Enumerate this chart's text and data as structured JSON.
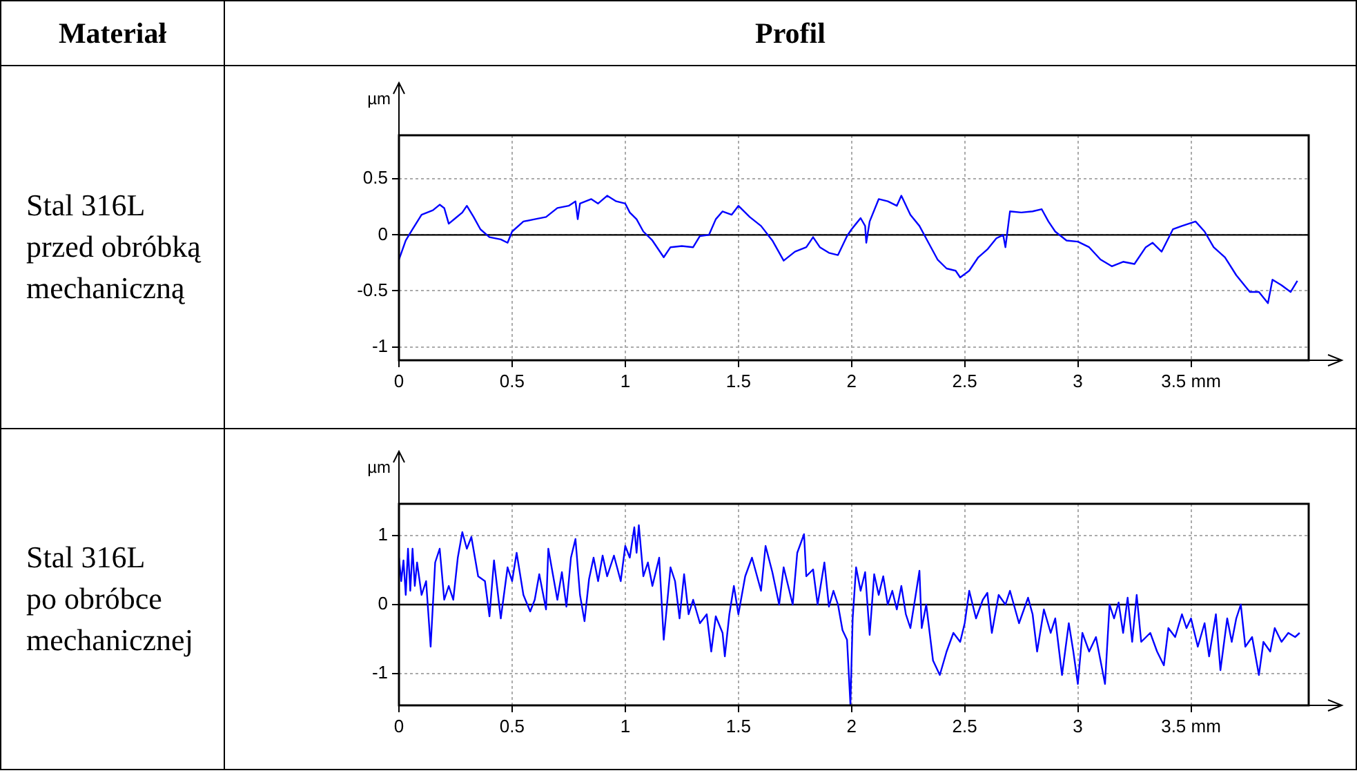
{
  "chart_data": [
    {
      "type": "other",
      "annotations": [
        "Materiał",
        "Profil"
      ]
    },
    {
      "type": "line",
      "annotations": [
        "Stal 316L",
        "przed obróbką",
        "mechaniczną"
      ],
      "ylabel": "µm",
      "xlim": [
        0,
        4.02
      ],
      "ylim": [
        -1.12,
        0.89
      ],
      "xticks": [
        0,
        0.5,
        1,
        1.5,
        2,
        2.5,
        3,
        {
          "value": 3.5,
          "label": "3.5 mm"
        }
      ],
      "yticks": [
        -1,
        -0.5,
        0,
        0.5
      ],
      "grid": true,
      "marker": "none",
      "line_style": "solid",
      "ref_lines": [
        {
          "axis": "y",
          "value": 0,
          "color": "#000000"
        }
      ],
      "series": [
        {
          "color": "#0000ff",
          "x": [
            0,
            0.03,
            0.06,
            0.1,
            0.15,
            0.18,
            0.2,
            0.22,
            0.25,
            0.28,
            0.3,
            0.33,
            0.36,
            0.4,
            0.45,
            0.48,
            0.5,
            0.55,
            0.6,
            0.65,
            0.7,
            0.75,
            0.78,
            0.79,
            0.8,
            0.85,
            0.88,
            0.92,
            0.96,
            1.0,
            1.02,
            1.05,
            1.08,
            1.12,
            1.17,
            1.2,
            1.25,
            1.3,
            1.33,
            1.37,
            1.4,
            1.43,
            1.47,
            1.5,
            1.55,
            1.6,
            1.65,
            1.7,
            1.75,
            1.8,
            1.83,
            1.86,
            1.9,
            1.94,
            1.98,
            2.0,
            2.02,
            2.04,
            2.06,
            2.065,
            2.08,
            2.12,
            2.16,
            2.2,
            2.22,
            2.26,
            2.3,
            2.34,
            2.38,
            2.42,
            2.46,
            2.48,
            2.52,
            2.56,
            2.6,
            2.64,
            2.67,
            2.68,
            2.7,
            2.75,
            2.8,
            2.84,
            2.87,
            2.9,
            2.95,
            3.0,
            3.05,
            3.1,
            3.15,
            3.2,
            3.25,
            3.3,
            3.33,
            3.37,
            3.42,
            3.46,
            3.52,
            3.56,
            3.6,
            3.65,
            3.7,
            3.76,
            3.8,
            3.84,
            3.86,
            3.9,
            3.94,
            3.97
          ],
          "values": [
            -0.22,
            -0.05,
            0.05,
            0.18,
            0.22,
            0.27,
            0.24,
            0.1,
            0.15,
            0.2,
            0.26,
            0.16,
            0.05,
            -0.02,
            -0.04,
            -0.07,
            0.03,
            0.12,
            0.14,
            0.16,
            0.24,
            0.26,
            0.3,
            0.14,
            0.28,
            0.32,
            0.28,
            0.35,
            0.3,
            0.28,
            0.2,
            0.14,
            0.03,
            -0.05,
            -0.2,
            -0.11,
            -0.1,
            -0.11,
            -0.01,
            0,
            0.14,
            0.21,
            0.18,
            0.26,
            0.16,
            0.08,
            -0.05,
            -0.23,
            -0.15,
            -0.11,
            -0.02,
            -0.11,
            -0.16,
            -0.18,
            -0.01,
            0.05,
            0.1,
            0.15,
            0.08,
            -0.07,
            0.12,
            0.32,
            0.3,
            0.26,
            0.35,
            0.18,
            0.08,
            -0.07,
            -0.22,
            -0.3,
            -0.32,
            -0.38,
            -0.32,
            -0.2,
            -0.13,
            -0.03,
            0,
            -0.11,
            0.21,
            0.2,
            0.21,
            0.23,
            0.12,
            0.03,
            -0.05,
            -0.06,
            -0.11,
            -0.22,
            -0.28,
            -0.24,
            -0.26,
            -0.11,
            -0.07,
            -0.15,
            0.05,
            0.08,
            0.12,
            0.03,
            -0.11,
            -0.2,
            -0.36,
            -0.51,
            -0.51,
            -0.61,
            -0.4,
            -0.45,
            -0.51,
            -0.41
          ]
        }
      ]
    },
    {
      "type": "line",
      "annotations": [
        "Stal 316L",
        "po obróbce",
        "mechanicznej"
      ],
      "ylabel": "µm",
      "xlim": [
        0,
        4.02
      ],
      "ylim": [
        -1.46,
        1.46
      ],
      "xticks": [
        0,
        0.5,
        1,
        1.5,
        2,
        2.5,
        3,
        {
          "value": 3.5,
          "label": "3.5 mm"
        }
      ],
      "yticks": [
        -1,
        0,
        1
      ],
      "grid": true,
      "marker": "none",
      "line_style": "solid",
      "ref_lines": [
        {
          "axis": "y",
          "value": 0,
          "color": "#000000"
        }
      ],
      "series": [
        {
          "color": "#0000ff",
          "x": [
            0,
            0.01,
            0.02,
            0.03,
            0.04,
            0.05,
            0.06,
            0.07,
            0.08,
            0.1,
            0.12,
            0.14,
            0.15,
            0.16,
            0.18,
            0.2,
            0.22,
            0.24,
            0.26,
            0.28,
            0.3,
            0.32,
            0.35,
            0.38,
            0.4,
            0.42,
            0.45,
            0.48,
            0.5,
            0.52,
            0.55,
            0.58,
            0.6,
            0.62,
            0.65,
            0.66,
            0.7,
            0.72,
            0.74,
            0.76,
            0.78,
            0.8,
            0.82,
            0.84,
            0.86,
            0.88,
            0.9,
            0.92,
            0.95,
            0.98,
            1.0,
            1.02,
            1.04,
            1.05,
            1.06,
            1.08,
            1.1,
            1.12,
            1.15,
            1.17,
            1.2,
            1.22,
            1.24,
            1.26,
            1.28,
            1.3,
            1.33,
            1.36,
            1.38,
            1.4,
            1.43,
            1.44,
            1.46,
            1.48,
            1.5,
            1.53,
            1.56,
            1.6,
            1.62,
            1.65,
            1.68,
            1.7,
            1.74,
            1.76,
            1.79,
            1.8,
            1.83,
            1.85,
            1.88,
            1.9,
            1.92,
            1.94,
            1.96,
            1.98,
            1.995,
            2.005,
            2.02,
            2.04,
            2.06,
            2.08,
            2.1,
            2.12,
            2.14,
            2.16,
            2.18,
            2.2,
            2.22,
            2.24,
            2.26,
            2.28,
            2.3,
            2.31,
            2.33,
            2.36,
            2.39,
            2.42,
            2.45,
            2.48,
            2.5,
            2.52,
            2.55,
            2.58,
            2.6,
            2.62,
            2.65,
            2.68,
            2.7,
            2.74,
            2.78,
            2.8,
            2.82,
            2.85,
            2.88,
            2.9,
            2.93,
            2.96,
            2.98,
            3.0,
            3.02,
            3.05,
            3.08,
            3.12,
            3.14,
            3.16,
            3.18,
            3.2,
            3.22,
            3.24,
            3.26,
            3.28,
            3.32,
            3.35,
            3.38,
            3.4,
            3.43,
            3.46,
            3.48,
            3.5,
            3.53,
            3.56,
            3.58,
            3.61,
            3.63,
            3.66,
            3.68,
            3.7,
            3.72,
            3.74,
            3.77,
            3.8,
            3.82,
            3.85,
            3.87,
            3.9,
            3.93,
            3.96,
            3.98
          ],
          "values": [
            0.68,
            0.34,
            0.64,
            0.14,
            0.81,
            0.2,
            0.81,
            0.27,
            0.61,
            0.14,
            0.34,
            -0.61,
            0,
            0.61,
            0.81,
            0.07,
            0.27,
            0.07,
            0.68,
            1.05,
            0.81,
            0.98,
            0.41,
            0.34,
            -0.17,
            0.64,
            -0.2,
            0.54,
            0.34,
            0.75,
            0.14,
            -0.1,
            0.07,
            0.44,
            -0.07,
            0.81,
            0.07,
            0.47,
            -0.03,
            0.68,
            0.95,
            0.14,
            -0.24,
            0.37,
            0.68,
            0.34,
            0.71,
            0.41,
            0.71,
            0.34,
            0.85,
            0.68,
            1.12,
            0.75,
            1.15,
            0.41,
            0.61,
            0.27,
            0.68,
            -0.51,
            0.54,
            0.34,
            -0.2,
            0.44,
            -0.14,
            0.07,
            -0.27,
            -0.14,
            -0.68,
            -0.17,
            -0.41,
            -0.75,
            -0.14,
            0.27,
            -0.14,
            0.41,
            0.68,
            0.2,
            0.85,
            0.47,
            0,
            0.54,
            0,
            0.75,
            1.02,
            0.41,
            0.51,
            0,
            0.61,
            -0.03,
            0.2,
            0,
            -0.37,
            -0.51,
            -1.45,
            -0.2,
            0.54,
            0.2,
            0.47,
            -0.44,
            0.44,
            0.14,
            0.41,
            0,
            0.2,
            -0.07,
            0.27,
            -0.14,
            -0.34,
            0.07,
            0.49,
            -0.34,
            0,
            -0.81,
            -1.02,
            -0.68,
            -0.41,
            -0.54,
            -0.27,
            0.2,
            -0.2,
            0.07,
            0.17,
            -0.41,
            0.14,
            0,
            0.2,
            -0.27,
            0.1,
            -0.14,
            -0.68,
            -0.07,
            -0.41,
            -0.2,
            -1.02,
            -0.27,
            -0.68,
            -1.15,
            -0.41,
            -0.68,
            -0.47,
            -1.15,
            0,
            -0.2,
            0.03,
            -0.41,
            0.1,
            -0.54,
            0.14,
            -0.54,
            -0.41,
            -0.68,
            -0.88,
            -0.34,
            -0.47,
            -0.14,
            -0.34,
            -0.2,
            -0.61,
            -0.27,
            -0.75,
            -0.14,
            -0.95,
            -0.2,
            -0.54,
            -0.2,
            0,
            -0.61,
            -0.47,
            -1.02,
            -0.54,
            -0.68,
            -0.34,
            -0.54,
            -0.41,
            -0.47,
            -0.41
          ]
        }
      ]
    }
  ]
}
